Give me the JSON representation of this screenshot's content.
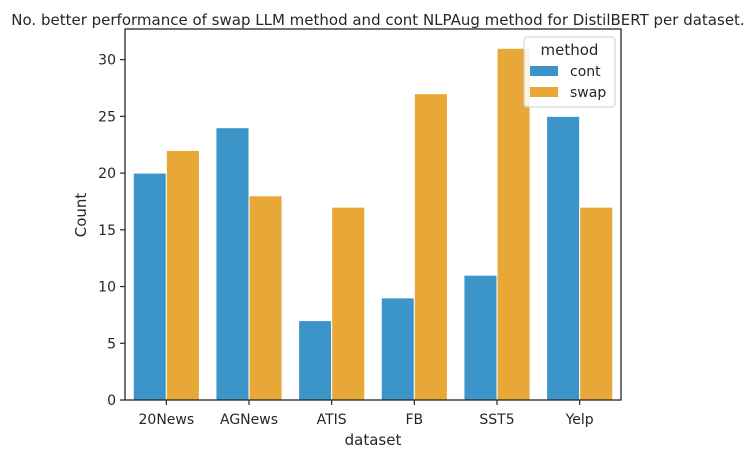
{
  "chart_data": {
    "type": "bar",
    "title": "No. better performance of swap LLM method and cont NLPAug method for DistilBERT per dataset.",
    "xlabel": "dataset",
    "ylabel": "Count",
    "categories": [
      "20News",
      "AGNews",
      "ATIS",
      "FB",
      "SST5",
      "Yelp"
    ],
    "series": [
      {
        "name": "cont",
        "values": [
          20,
          24,
          7,
          9,
          11,
          25
        ],
        "color": "#3b95c8"
      },
      {
        "name": "swap",
        "values": [
          22,
          18,
          17,
          27,
          31,
          17
        ],
        "color": "#e8a838"
      }
    ],
    "ylim": [
      0,
      32.7
    ],
    "yticks": [
      0,
      5,
      10,
      15,
      20,
      25,
      30
    ],
    "grid": false,
    "legend": {
      "title": "method",
      "placement": "top-right"
    }
  }
}
